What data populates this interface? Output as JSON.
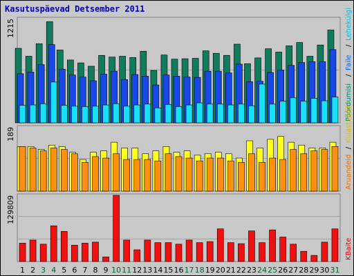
{
  "title": "Kasutuspäevad Detsember 2011",
  "chart_data": {
    "type": "bar",
    "categories": [
      "1",
      "2",
      "3",
      "4",
      "5",
      "6",
      "7",
      "8",
      "9",
      "10",
      "11",
      "12",
      "13",
      "14",
      "15",
      "16",
      "17",
      "18",
      "19",
      "20",
      "21",
      "22",
      "23",
      "24",
      "25",
      "26",
      "27",
      "28",
      "29",
      "30",
      "31"
    ],
    "weekend_days": [
      "3",
      "4",
      "10",
      "11",
      "17",
      "18",
      "24",
      "25",
      "31"
    ],
    "label_colors": {
      "weekday": "#000000",
      "weekend": "#006633"
    },
    "panels": [
      {
        "id": "top",
        "ymax": 1215,
        "ymax_label": "1215",
        "axis_labels": [
          {
            "text": "Pöördumisi",
            "color": "#008060"
          },
          {
            "text": "Faile",
            "color": "#0066ff"
          },
          {
            "text": "Lehekülgi",
            "color": "#00c0e0"
          }
        ],
        "series": [
          {
            "name": "Pöördumisi",
            "color": "#107c5c",
            "values": [
              895,
              800,
              950,
              1215,
              875,
              755,
              720,
              680,
              810,
              790,
              800,
              785,
              860,
              630,
              815,
              765,
              770,
              775,
              865,
              835,
              810,
              945,
              710,
              780,
              890,
              850,
              925,
              965,
              800,
              935,
              1115
            ]
          },
          {
            "name": "Faile",
            "color": "#1848e8",
            "values": [
              590,
              610,
              700,
              940,
              645,
              575,
              550,
              505,
              585,
              620,
              520,
              580,
              560,
              455,
              575,
              560,
              550,
              545,
              620,
              620,
              600,
              705,
              495,
              500,
              605,
              635,
              690,
              725,
              735,
              735,
              880
            ]
          },
          {
            "name": "Lehekülgi",
            "color": "#18e0f8",
            "values": [
              210,
              215,
              230,
              490,
              210,
              200,
              195,
              200,
              215,
              230,
              200,
              215,
              225,
              180,
              220,
              195,
              215,
              240,
              225,
              225,
              215,
              225,
              205,
              465,
              225,
              260,
              300,
              260,
              295,
              265,
              310
            ]
          }
        ]
      },
      {
        "id": "middle",
        "ymax": 189,
        "ymax_label": "189",
        "axis_labels": [
          {
            "text": "Aruandeid",
            "color": "#e07000"
          },
          {
            "text": "Külastajaid",
            "color": "#d8c000"
          }
        ],
        "series": [
          {
            "name": "Külastajaid",
            "color": "#ffff20",
            "values": [
              155,
              155,
              145,
              160,
              155,
              135,
              110,
              135,
              140,
              170,
              150,
              150,
              130,
              140,
              155,
              135,
              140,
              125,
              130,
              135,
              130,
              115,
              175,
              150,
              180,
              190,
              170,
              160,
              150,
              150,
              170
            ]
          },
          {
            "name": "Aruandeid",
            "color": "#ff9010",
            "values": [
              155,
              150,
              140,
              150,
              145,
              130,
              100,
              120,
              115,
              130,
              110,
              110,
              110,
              105,
              130,
              120,
              115,
              105,
              115,
              115,
              105,
              100,
              130,
              100,
              115,
              110,
              145,
              130,
              140,
              145,
              155
            ]
          }
        ]
      },
      {
        "id": "bottom",
        "ymax": 129809,
        "ymax_label": "129809",
        "axis_labels": [
          {
            "text": "KBaite",
            "color": "#e00000"
          }
        ],
        "series": [
          {
            "name": "KBaite",
            "color": "#f01010",
            "values": [
              36000,
              42000,
              34000,
              70000,
              59000,
              32000,
              36000,
              38000,
              9000,
              129809,
              42000,
              23000,
              42000,
              37000,
              37000,
              34000,
              42000,
              37000,
              39000,
              64000,
              37000,
              35000,
              60000,
              37000,
              62000,
              48000,
              34000,
              20000,
              12000,
              38000,
              64000
            ]
          }
        ]
      }
    ]
  }
}
